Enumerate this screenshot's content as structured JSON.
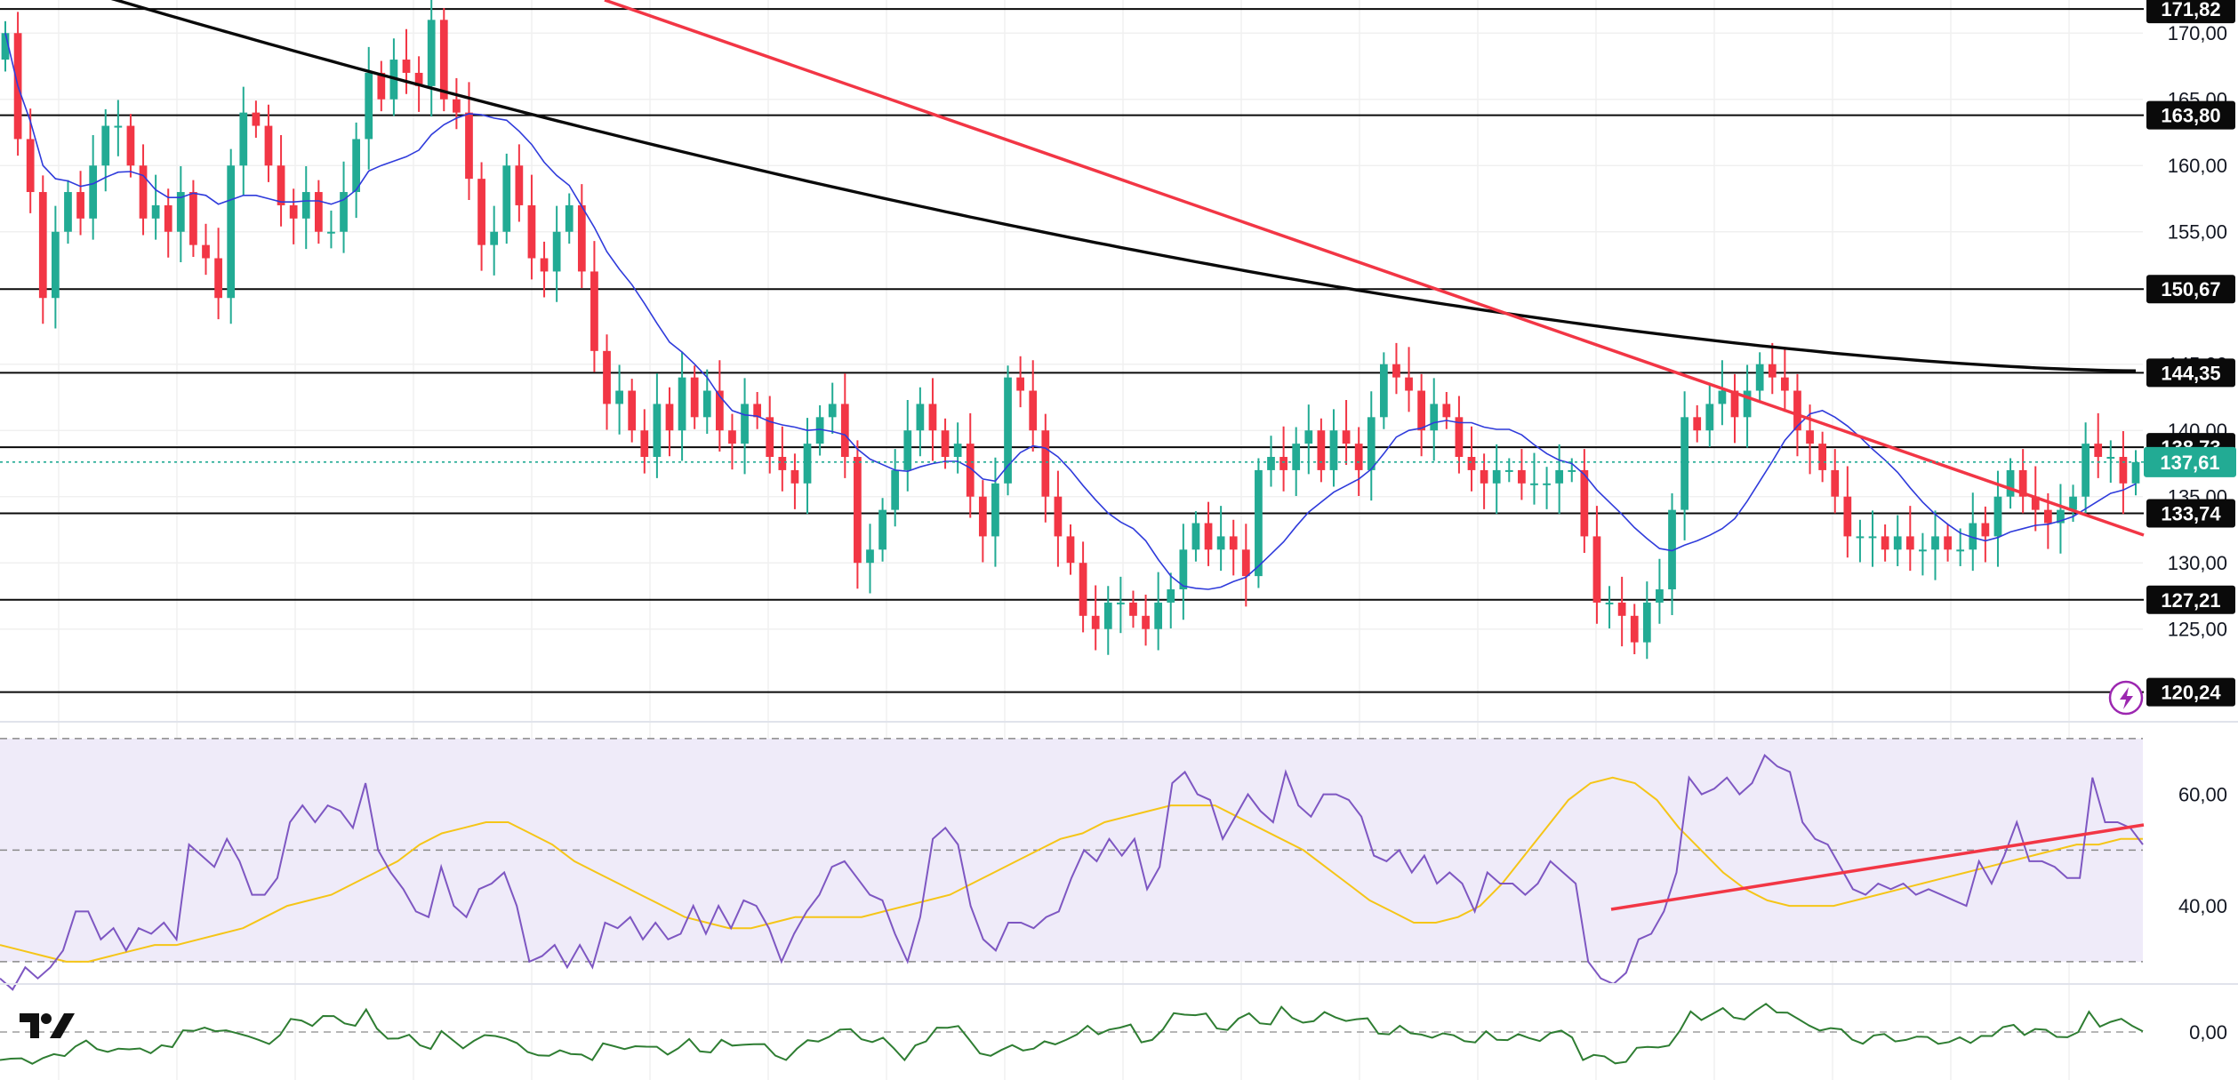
{
  "chart_data": [
    {
      "type": "candlestick",
      "y_ticks": [
        "170,00",
        "165,00",
        "160,00",
        "155,00",
        "145,00",
        "140,00",
        "135,00",
        "130,00",
        "125,00"
      ],
      "ylim": [
        118,
        172.5
      ],
      "horizontal_levels": [
        "171,82",
        "163,80",
        "150,67",
        "144,35",
        "138,73",
        "133,74",
        "127,21",
        "120,24"
      ],
      "current_price": "137,61",
      "last_close": 137.61,
      "closes": [
        170,
        162,
        158,
        150,
        155,
        158,
        156,
        160,
        163,
        163,
        160,
        156,
        157,
        155,
        158,
        154,
        153,
        150,
        160,
        164,
        163,
        160,
        157,
        156,
        158,
        155,
        155,
        158,
        162,
        167,
        165,
        168,
        167,
        166,
        171,
        165,
        164,
        159,
        154,
        155,
        160,
        157,
        153,
        152,
        155,
        157,
        152,
        146,
        142,
        143,
        140,
        138,
        142,
        140,
        144,
        141,
        143,
        140,
        139,
        142,
        141,
        138,
        137,
        136,
        139,
        141,
        142,
        138,
        130,
        131,
        134,
        137,
        140,
        142,
        140,
        138,
        139,
        135,
        132,
        136,
        144,
        143,
        140,
        135,
        132,
        130,
        126,
        125,
        127,
        127,
        126,
        125,
        127,
        128,
        131,
        133,
        131,
        132,
        131,
        129,
        137,
        138,
        137,
        139,
        140,
        137,
        140,
        139,
        137,
        141,
        145,
        144,
        143,
        140,
        142,
        141,
        138,
        137,
        136,
        137,
        137,
        136,
        136,
        136,
        137,
        137,
        132,
        127,
        127,
        126,
        124,
        127,
        128,
        134,
        141,
        140,
        142,
        143,
        141,
        143,
        145,
        144,
        143,
        140,
        139,
        137,
        135,
        132,
        132,
        132,
        131,
        132,
        131,
        131,
        132,
        131,
        131,
        133,
        132,
        135,
        137,
        135,
        134,
        133,
        134,
        135,
        139,
        138,
        138,
        136,
        137.61
      ],
      "ma_blue_label": "moving average (blue)",
      "ma_black_label": "moving average (black)"
    },
    {
      "type": "line",
      "indicator": "RSI",
      "y_ticks": [
        "60,00",
        "40,00"
      ],
      "ylim": [
        26,
        73
      ],
      "levels": [
        70,
        50,
        30
      ],
      "rsi": [
        27,
        25,
        29,
        27,
        29,
        32,
        39,
        39,
        34,
        36,
        32,
        36,
        35,
        37,
        34,
        51,
        49,
        47,
        52,
        48,
        42,
        42,
        45,
        55,
        58,
        55,
        58,
        57,
        54,
        62,
        50,
        46,
        43,
        39,
        38,
        47,
        40,
        38,
        43,
        44,
        46,
        40,
        30,
        31,
        33,
        29,
        33,
        29,
        37,
        36,
        38,
        34,
        37,
        34,
        35,
        40,
        35,
        40,
        36,
        41,
        40,
        36,
        30,
        35,
        39,
        42,
        47,
        48,
        45,
        42,
        41,
        35,
        30,
        38,
        52,
        54,
        51,
        40,
        34,
        32,
        37,
        37,
        36,
        38,
        39,
        45,
        50,
        48,
        52,
        49,
        52,
        43,
        47,
        62,
        64,
        60,
        59,
        52,
        56,
        60,
        57,
        55,
        64,
        58,
        56,
        60,
        60,
        59,
        56,
        49,
        48,
        50,
        46,
        49,
        44,
        46,
        44,
        39,
        46,
        44,
        44,
        42,
        44,
        48,
        46,
        44,
        30,
        27,
        26,
        28,
        34,
        35,
        39,
        46,
        63,
        60,
        61,
        63,
        60,
        62,
        67,
        65,
        64,
        55,
        52,
        51,
        47,
        43,
        42,
        44,
        43,
        44,
        42,
        43,
        42,
        41,
        40,
        48,
        44,
        49,
        55,
        48,
        48,
        47,
        45,
        45,
        63,
        55,
        55,
        54,
        51
      ],
      "rsi_ma": [
        33,
        32,
        31,
        30,
        30,
        31,
        32,
        33,
        33,
        34,
        35,
        36,
        38,
        40,
        41,
        42,
        44,
        46,
        48,
        51,
        53,
        54,
        55,
        55,
        53,
        51,
        48,
        46,
        44,
        42,
        40,
        38,
        37,
        36,
        36,
        37,
        38,
        38,
        38,
        38,
        39,
        40,
        41,
        42,
        44,
        46,
        48,
        50,
        52,
        53,
        55,
        56,
        57,
        58,
        58,
        58,
        56,
        54,
        52,
        50,
        47,
        44,
        41,
        39,
        37,
        37,
        38,
        40,
        44,
        49,
        54,
        59,
        62,
        63,
        62,
        59,
        54,
        50,
        46,
        43,
        41,
        40,
        40,
        40,
        41,
        42,
        43,
        44,
        45,
        46,
        47,
        48,
        49,
        50,
        51,
        51,
        52,
        52
      ],
      "trendline_label": "rising support trendline"
    },
    {
      "type": "line",
      "indicator": "oscillator",
      "y_ticks": [
        "0,00"
      ],
      "ylim": [
        -3,
        3
      ]
    }
  ],
  "colors": {
    "up": "#22ab94",
    "down": "#f23645",
    "trend_red": "#f23645",
    "ma_blue": "#2f3bdb",
    "ma_black": "#0a0a0a",
    "rsi": "#7e57c2",
    "rsi_ma": "#f5c518",
    "rsi_band": "#efebf9",
    "osc": "#2e7d32",
    "grid": "#f0f0f0",
    "label_bg": "#0a0a0a",
    "price_bg": "#22ab94"
  },
  "branding": {
    "logo": "TradingView logo",
    "icon": "lightning-icon"
  }
}
